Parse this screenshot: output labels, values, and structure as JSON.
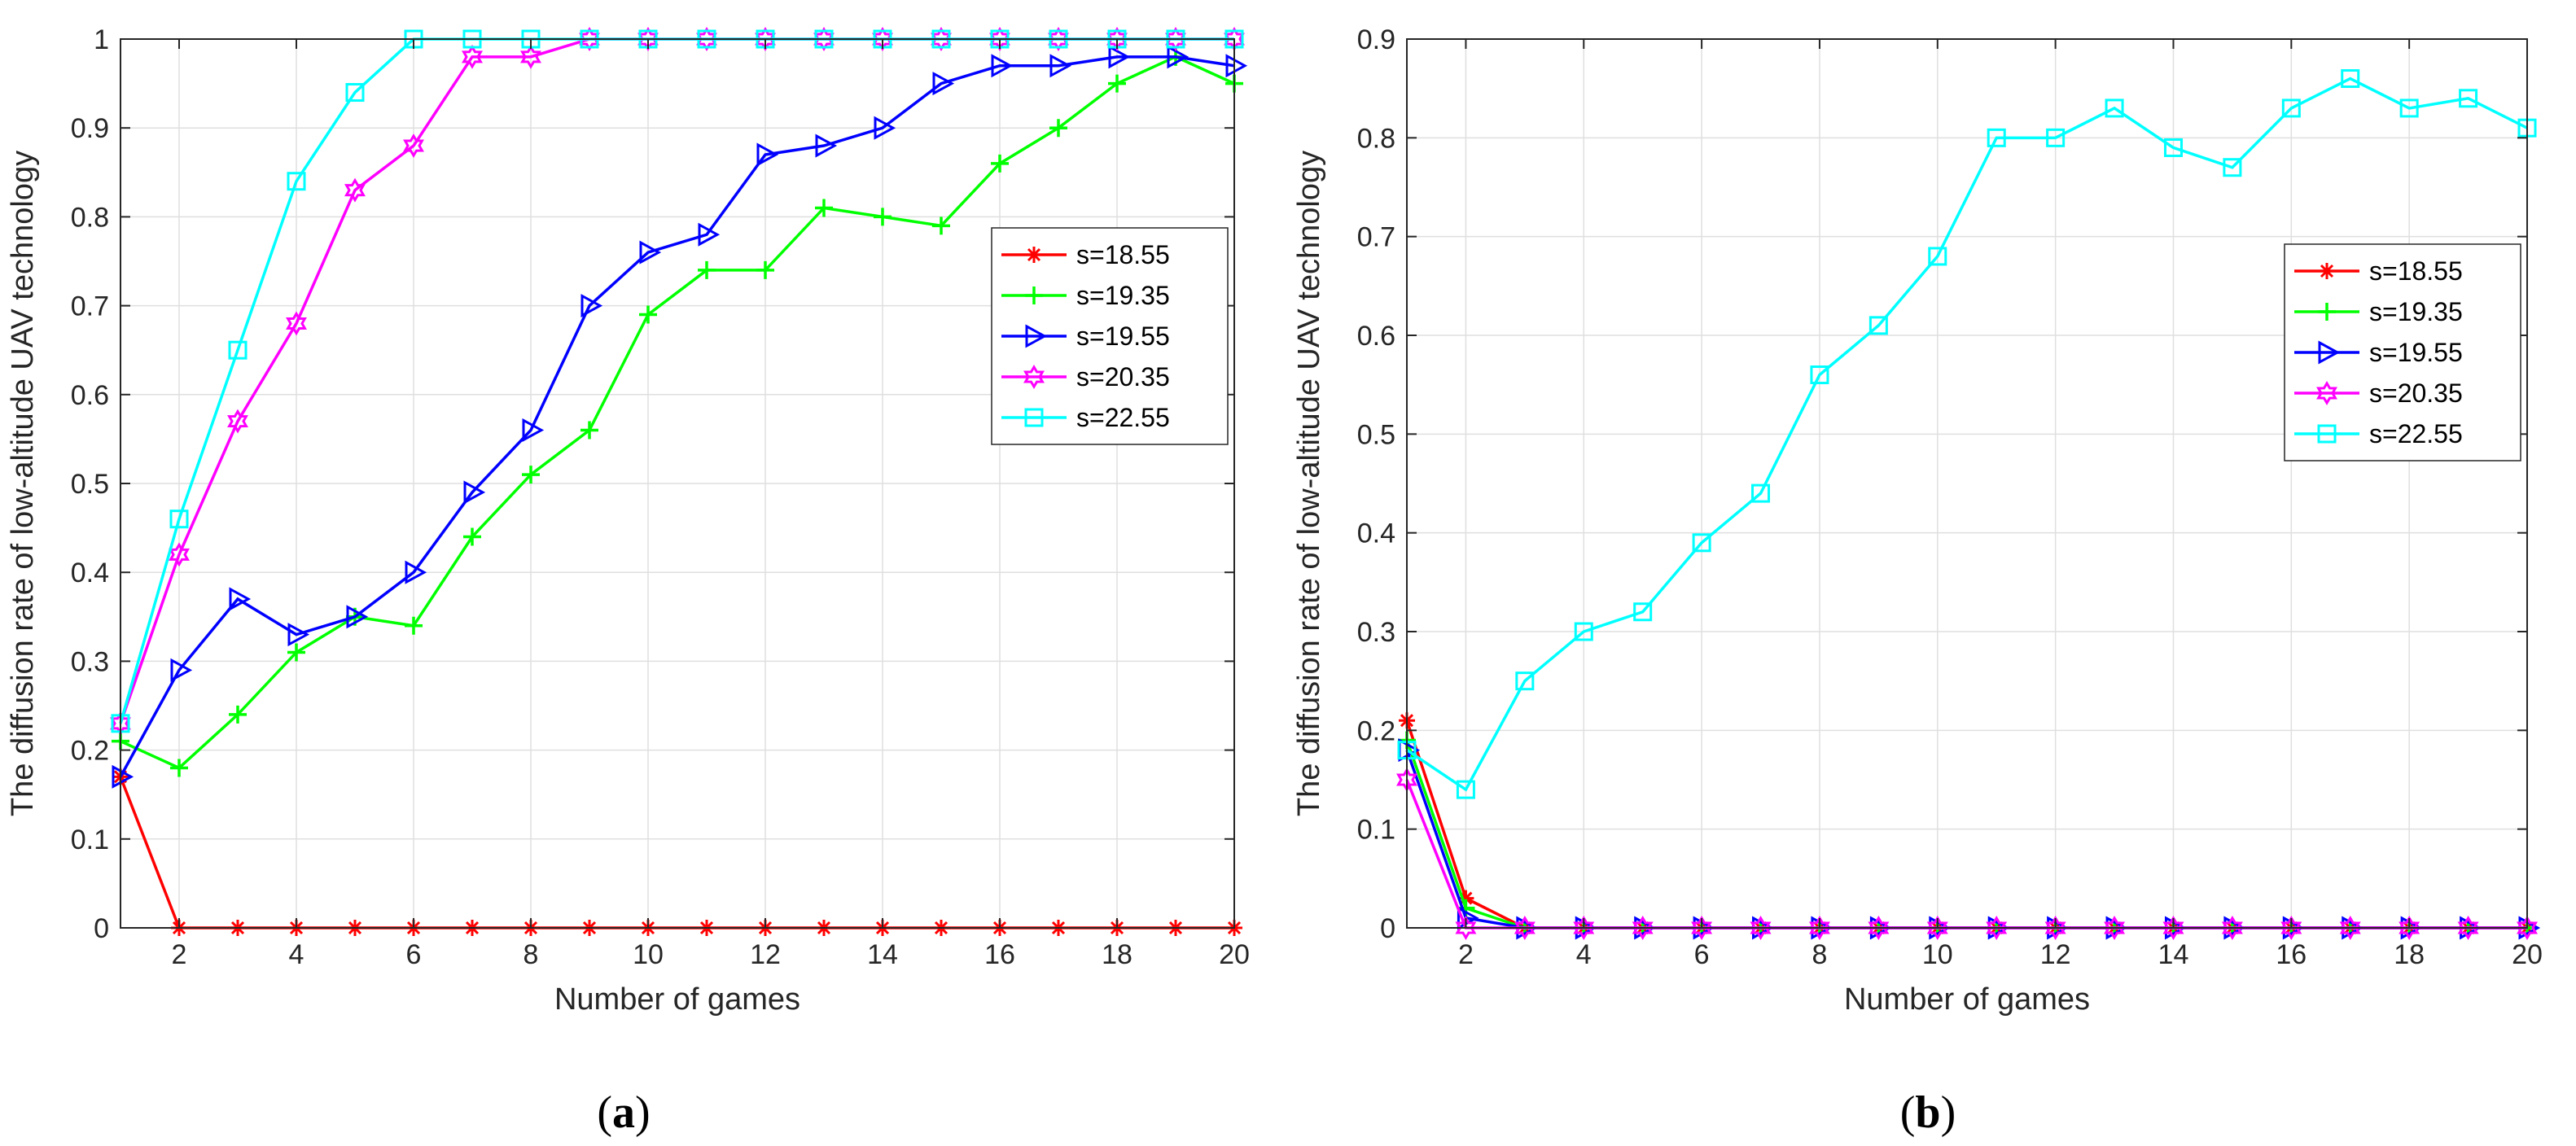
{
  "chart_data": [
    {
      "type": "line",
      "panel_label": "a",
      "title": "",
      "xlabel": "Number of games",
      "ylabel": "The diffusion rate of low-altitude UAV technology",
      "xlim": [
        1,
        20
      ],
      "ylim": [
        0,
        1
      ],
      "xticks": [
        2,
        4,
        6,
        8,
        10,
        12,
        14,
        16,
        18,
        20
      ],
      "yticks": [
        0,
        0.1,
        0.2,
        0.3,
        0.4,
        0.5,
        0.6,
        0.7,
        0.8,
        0.9,
        1
      ],
      "ytick_labels": [
        "0",
        "0.1",
        "0.2",
        "0.3",
        "0.4",
        "0.5",
        "0.6",
        "0.7",
        "0.8",
        "0.9",
        "1"
      ],
      "grid": true,
      "legend_position": "center-right",
      "x": [
        1,
        2,
        3,
        4,
        5,
        6,
        7,
        8,
        9,
        10,
        11,
        12,
        13,
        14,
        15,
        16,
        17,
        18,
        19,
        20
      ],
      "series": [
        {
          "name": "s=18.55",
          "color": "#ff0000",
          "marker": "asterisk",
          "values": [
            0.17,
            0,
            0,
            0,
            0,
            0,
            0,
            0,
            0,
            0,
            0,
            0,
            0,
            0,
            0,
            0,
            0,
            0,
            0,
            0
          ]
        },
        {
          "name": "s=19.35",
          "color": "#00ff00",
          "marker": "plus",
          "values": [
            0.21,
            0.18,
            0.24,
            0.31,
            0.35,
            0.34,
            0.44,
            0.51,
            0.56,
            0.69,
            0.74,
            0.74,
            0.81,
            0.8,
            0.79,
            0.86,
            0.9,
            0.95,
            0.98,
            0.95
          ]
        },
        {
          "name": "s=19.55",
          "color": "#0000ff",
          "marker": "triangle-right",
          "values": [
            0.17,
            0.29,
            0.37,
            0.33,
            0.35,
            0.4,
            0.49,
            0.56,
            0.7,
            0.76,
            0.78,
            0.87,
            0.88,
            0.9,
            0.95,
            0.97,
            0.97,
            0.98,
            0.98,
            0.97
          ]
        },
        {
          "name": "s=20.35",
          "color": "#ff00ff",
          "marker": "hexagram",
          "values": [
            0.23,
            0.42,
            0.57,
            0.68,
            0.83,
            0.88,
            0.98,
            0.98,
            1,
            1,
            1,
            1,
            1,
            1,
            1,
            1,
            1,
            1,
            1,
            1
          ]
        },
        {
          "name": "s=22.55",
          "color": "#00ffff",
          "marker": "square",
          "values": [
            0.23,
            0.46,
            0.65,
            0.84,
            0.94,
            1,
            1,
            1,
            1,
            1,
            1,
            1,
            1,
            1,
            1,
            1,
            1,
            1,
            1,
            1
          ]
        }
      ]
    },
    {
      "type": "line",
      "panel_label": "b",
      "title": "",
      "xlabel": "Number of games",
      "ylabel": "The diffusion rate of low-altitude UAV technology",
      "xlim": [
        1,
        20
      ],
      "ylim": [
        0,
        0.9
      ],
      "xticks": [
        2,
        4,
        6,
        8,
        10,
        12,
        14,
        16,
        18,
        20
      ],
      "yticks": [
        0,
        0.1,
        0.2,
        0.3,
        0.4,
        0.5,
        0.6,
        0.7,
        0.8,
        0.9
      ],
      "ytick_labels": [
        "0",
        "0.1",
        "0.2",
        "0.3",
        "0.4",
        "0.5",
        "0.6",
        "0.7",
        "0.8",
        "0.9"
      ],
      "grid": true,
      "legend_position": "center-right",
      "x": [
        1,
        2,
        3,
        4,
        5,
        6,
        7,
        8,
        9,
        10,
        11,
        12,
        13,
        14,
        15,
        16,
        17,
        18,
        19,
        20
      ],
      "series": [
        {
          "name": "s=18.55",
          "color": "#ff0000",
          "marker": "asterisk",
          "values": [
            0.21,
            0.03,
            0,
            0,
            0,
            0,
            0,
            0,
            0,
            0,
            0,
            0,
            0,
            0,
            0,
            0,
            0,
            0,
            0,
            0
          ]
        },
        {
          "name": "s=19.35",
          "color": "#00ff00",
          "marker": "plus",
          "values": [
            0.19,
            0.02,
            0,
            0,
            0,
            0,
            0,
            0,
            0,
            0,
            0,
            0,
            0,
            0,
            0,
            0,
            0,
            0,
            0,
            0
          ]
        },
        {
          "name": "s=19.55",
          "color": "#0000ff",
          "marker": "triangle-right",
          "values": [
            0.18,
            0.01,
            0,
            0,
            0,
            0,
            0,
            0,
            0,
            0,
            0,
            0,
            0,
            0,
            0,
            0,
            0,
            0,
            0,
            0
          ]
        },
        {
          "name": "s=20.35",
          "color": "#ff00ff",
          "marker": "hexagram",
          "values": [
            0.15,
            0,
            0,
            0,
            0,
            0,
            0,
            0,
            0,
            0,
            0,
            0,
            0,
            0,
            0,
            0,
            0,
            0,
            0,
            0
          ]
        },
        {
          "name": "s=22.55",
          "color": "#00ffff",
          "marker": "square",
          "values": [
            0.18,
            0.14,
            0.25,
            0.3,
            0.32,
            0.39,
            0.44,
            0.56,
            0.61,
            0.68,
            0.8,
            0.8,
            0.83,
            0.79,
            0.77,
            0.83,
            0.86,
            0.83,
            0.84,
            0.81
          ]
        }
      ]
    }
  ]
}
